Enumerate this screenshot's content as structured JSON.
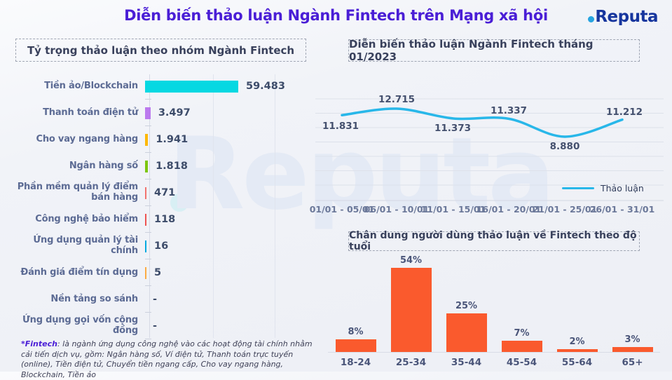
{
  "page": {
    "title": "Diễn biến thảo luận Ngành Fintech trên Mạng xã hội",
    "brand": "Reputa",
    "watermark": "Reputa"
  },
  "colors": {
    "title": "#4a1ed6",
    "logo_navy": "#17369e",
    "logo_dot": "#27a4e0",
    "line": "#28b7e9",
    "age_bar": "#fa5a2d",
    "grid": "#dde1ea",
    "category_label": "#5c6b94",
    "value_label": "#3d4c6a"
  },
  "left_panel": {
    "footnote_label": "*Fintech",
    "footnote_text": ": là ngành ứng dụng công nghệ vào các hoạt động tài chính nhằm cải tiến dịch vụ, gồm: Ngân hàng số, Ví điện tử, Thanh toán trực tuyến (online), Tiền điện tử, Chuyển tiền ngang cấp, Cho vay ngang hàng, Blockchain, Tiền ảo"
  },
  "chart_data": [
    {
      "type": "bar",
      "orientation": "horizontal",
      "title": "Tỷ trọng thảo luận theo nhóm Ngành Fintech",
      "categories": [
        "Tiền ảo/Blockchain",
        "Thanh toán điện tử",
        "Cho vay ngang hàng",
        "Ngân hàng số",
        "Phần mềm quản lý điểm bán hàng",
        "Công nghệ bảo hiểm",
        "Ứng dụng quản lý tài chính",
        "Đánh giá điểm tín dụng",
        "Nền tảng so sánh",
        "Ứng dụng gọi vốn cộng đồng"
      ],
      "values": [
        59483,
        3497,
        1941,
        1818,
        471,
        118,
        16,
        5,
        null,
        null
      ],
      "value_labels": [
        "59.483",
        "3.497",
        "1.941",
        "1.818",
        "471",
        "118",
        "16",
        "5",
        "-",
        "-"
      ],
      "bar_colors": [
        "#06d8e2",
        "#bb79ee",
        "#fdb802",
        "#7cc60d",
        "#f2736f",
        "#ee5351",
        "#04aadf",
        "#fcab43",
        null,
        null
      ],
      "grid": true
    },
    {
      "type": "line",
      "title": "Diễn biến thảo luận Ngành Fintech tháng 01/2023",
      "categories": [
        "01/01 - 05/01",
        "06/01 - 10/01",
        "11/01 - 15/01",
        "16/01 - 20/01",
        "21/01 - 25/01",
        "26/01 - 31/01"
      ],
      "series": [
        {
          "name": "Thảo luận",
          "values": [
            11831,
            12715,
            11373,
            11337,
            8880,
            11212
          ]
        }
      ],
      "value_labels": [
        "11.831",
        "12.715",
        "11.373",
        "11.337",
        "8.880",
        "11.212"
      ],
      "line_color": "#28b7e9",
      "legend_position": "right",
      "grid": true
    },
    {
      "type": "bar",
      "orientation": "vertical",
      "title": "Chân dung người dùng thảo luận về Fintech theo độ tuổi",
      "categories": [
        "18-24",
        "25-34",
        "35-44",
        "45-54",
        "55-64",
        "65+"
      ],
      "values": [
        8,
        54,
        25,
        7,
        2,
        3
      ],
      "value_labels": [
        "8%",
        "54%",
        "25%",
        "7%",
        "2%",
        "3%"
      ],
      "bar_color": "#fa5a2d",
      "unit": "%",
      "ylim": [
        0,
        60
      ]
    }
  ]
}
